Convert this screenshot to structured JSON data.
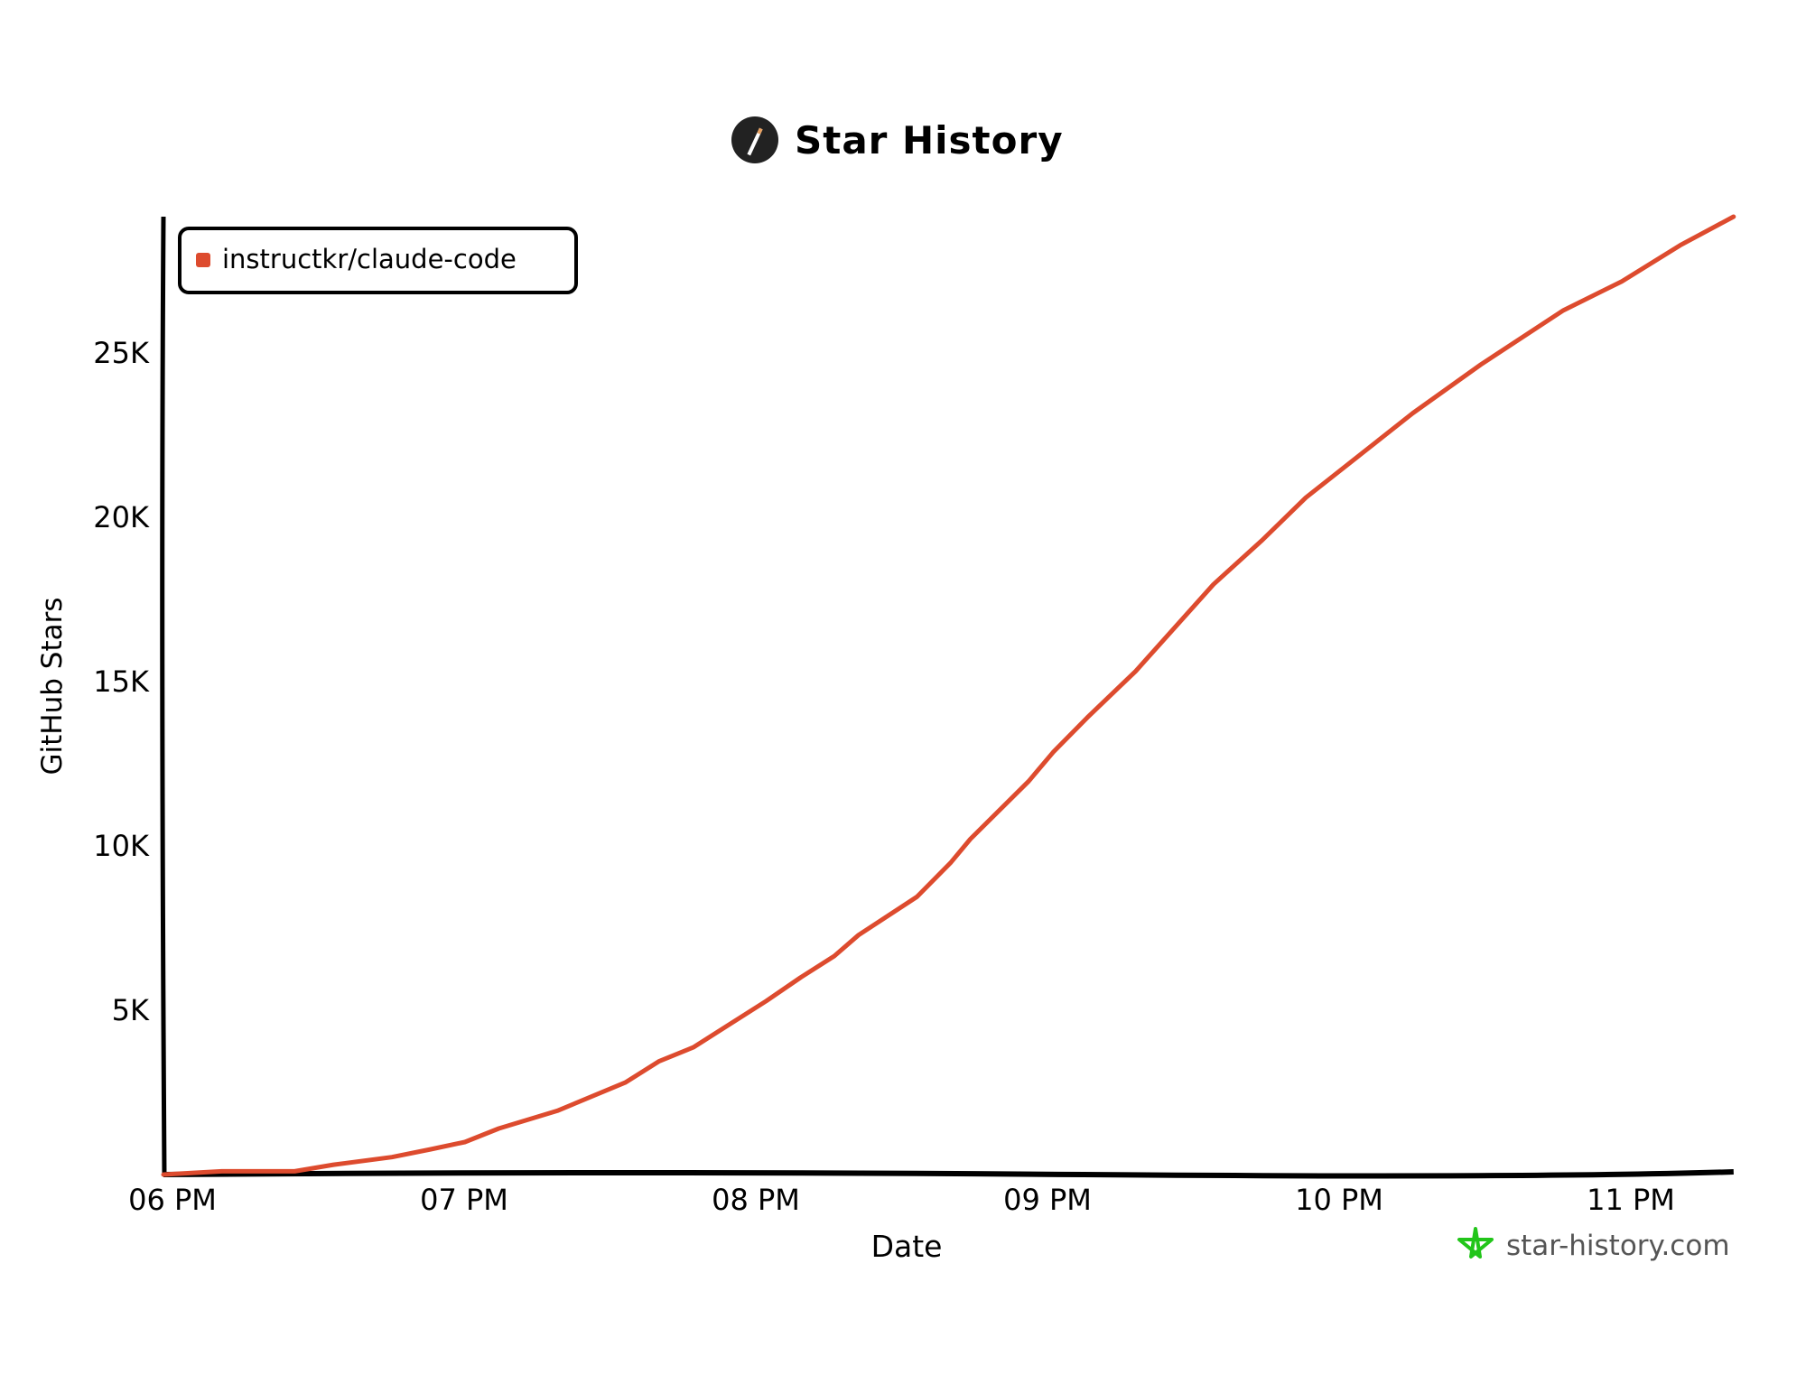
{
  "header": {
    "title": "Star History",
    "logo_icon": "pen-icon"
  },
  "footer": {
    "text": "star-history.com",
    "icon": "star-icon",
    "icon_color": "#22c51a"
  },
  "chart_data": {
    "type": "line",
    "title": "Star History",
    "xlabel": "Date",
    "ylabel": "GitHub Stars",
    "x_ticks": [
      "06 PM",
      "07 PM",
      "08 PM",
      "09 PM",
      "10 PM",
      "11 PM"
    ],
    "y_ticks": [
      {
        "value": 5000,
        "label": "5K"
      },
      {
        "value": 10000,
        "label": "10K"
      },
      {
        "value": 15000,
        "label": "15K"
      },
      {
        "value": 20000,
        "label": "20K"
      },
      {
        "value": 25000,
        "label": "25K"
      }
    ],
    "ylim": [
      0,
      29200
    ],
    "xlim": [
      "18:00",
      "23:23"
    ],
    "grid": false,
    "legend_position": "top-left",
    "series": [
      {
        "name": "instructkr/claude-code",
        "color": "#dd4b2e",
        "x": [
          "18:00",
          "18:12",
          "18:27",
          "18:35",
          "18:47",
          "18:55",
          "19:02",
          "19:09",
          "19:21",
          "19:35",
          "19:42",
          "19:49",
          "20:04",
          "20:11",
          "20:18",
          "20:23",
          "20:35",
          "20:42",
          "20:46",
          "20:58",
          "21:03",
          "21:10",
          "21:20",
          "21:36",
          "21:46",
          "21:55",
          "22:07",
          "22:17",
          "22:31",
          "22:48",
          "23:00",
          "23:12",
          "23:23"
        ],
        "values": [
          0,
          100,
          100,
          300,
          530,
          770,
          990,
          1400,
          1940,
          2800,
          3450,
          3870,
          5280,
          5990,
          6650,
          7290,
          8450,
          9500,
          10210,
          11970,
          12850,
          13900,
          15320,
          17960,
          19300,
          20600,
          22000,
          23170,
          24650,
          26300,
          27180,
          28280,
          29150
        ]
      }
    ]
  }
}
